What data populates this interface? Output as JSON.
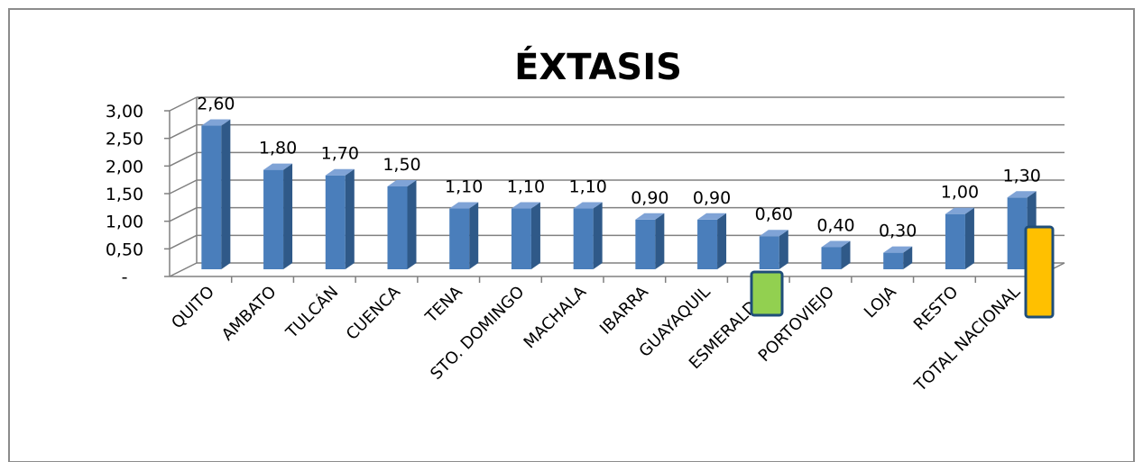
{
  "chart_data": {
    "type": "bar",
    "title": "ÉXTASIS",
    "xlabel": "",
    "ylabel": "",
    "ylim": [
      0,
      3
    ],
    "yticks": [
      "-",
      "0,50",
      "1,00",
      "1,50",
      "2,00",
      "2,50",
      "3,00"
    ],
    "ytick_values": [
      0,
      0.5,
      1,
      1.5,
      2,
      2.5,
      3
    ],
    "grid": true,
    "legend": "none",
    "categories": [
      "QUITO",
      "AMBATO",
      "TULCÁN",
      "CUENCA",
      "TENA",
      "STO. DOMINGO",
      "MACHALA",
      "IBARRA",
      "GUAYAQUIL",
      "ESMERALDAS",
      "PORTOVIEJO",
      "LOJA",
      "RESTO",
      "TOTAL NACIONAL"
    ],
    "values": [
      2.6,
      1.8,
      1.7,
      1.5,
      1.1,
      1.1,
      1.1,
      0.9,
      0.9,
      0.6,
      0.4,
      0.3,
      1.0,
      1.3
    ],
    "data_labels": [
      "2,60",
      "1,80",
      "1,70",
      "1,50",
      "1,10",
      "1,10",
      "1,10",
      "0,90",
      "0,90",
      "0,60",
      "0,40",
      "0,30",
      "1,00",
      "1,30"
    ],
    "colors": {
      "bar_front": "#4a7ebb",
      "bar_side": "#2f5988",
      "bar_top": "#7fa3d6",
      "grid": "#808080",
      "marker_green": "#92d050",
      "marker_orange": "#ffc000",
      "marker_border": "#1f4e79"
    },
    "markers": [
      {
        "category": "ESMERALDAS",
        "color": "#92d050"
      },
      {
        "category": "TOTAL NACIONAL",
        "color": "#ffc000"
      }
    ]
  }
}
